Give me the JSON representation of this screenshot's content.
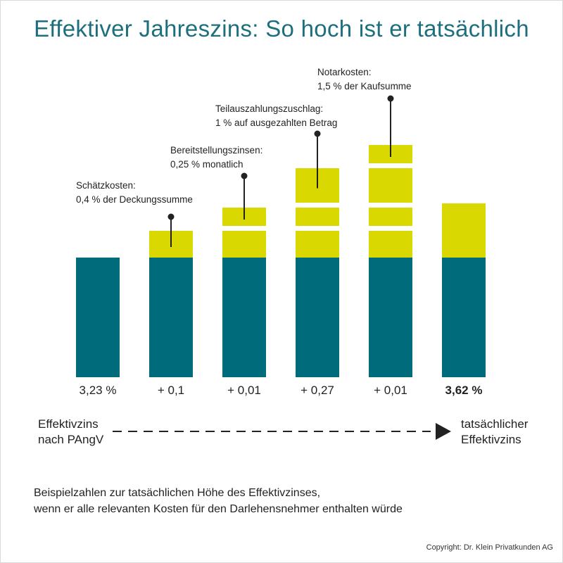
{
  "title": "Effektiver Jahreszins: So hoch ist er tatsächlich",
  "chart_data": {
    "type": "bar",
    "subtype": "stacked-waterfall",
    "categories": [
      "3,23 %",
      "+ 0,1",
      "+ 0,01",
      "+ 0,27",
      "+ 0,01",
      "3,62 %"
    ],
    "category_bold": [
      false,
      false,
      false,
      false,
      false,
      true
    ],
    "base_value": 3.23,
    "final_value": 3.62,
    "increments": [
      0.1,
      0.01,
      0.27,
      0.01
    ],
    "annotations": [
      {
        "bar": 1,
        "lines": [
          "Schätzkosten:",
          "0,4 % der Deckungssumme"
        ]
      },
      {
        "bar": 2,
        "lines": [
          "Bereitstellungszinsen:",
          "0,25 % monatlich"
        ]
      },
      {
        "bar": 3,
        "lines": [
          "Teilauszahlungszuschlag:",
          "1 % auf ausgezahlten Betrag"
        ]
      },
      {
        "bar": 4,
        "lines": [
          "Notarkosten:",
          "1,5 % der Kaufsumme"
        ]
      }
    ],
    "colors": {
      "base": "#006b7b",
      "cost": "#d9d800",
      "title": "#1d6f7e",
      "line": "#222222"
    }
  },
  "flow": {
    "from_lines": [
      "Effektivzins",
      "nach PAngV"
    ],
    "to_lines": [
      "tatsächlicher",
      "Effektivzins"
    ]
  },
  "note_lines": [
    "Beispielzahlen zur tatsächlichen Höhe des Effektivzinses,",
    "wenn er alle relevanten Kosten für den Darlehensnehmer enthalten würde"
  ],
  "copyright": "Copyright: Dr. Klein Privatkunden AG"
}
